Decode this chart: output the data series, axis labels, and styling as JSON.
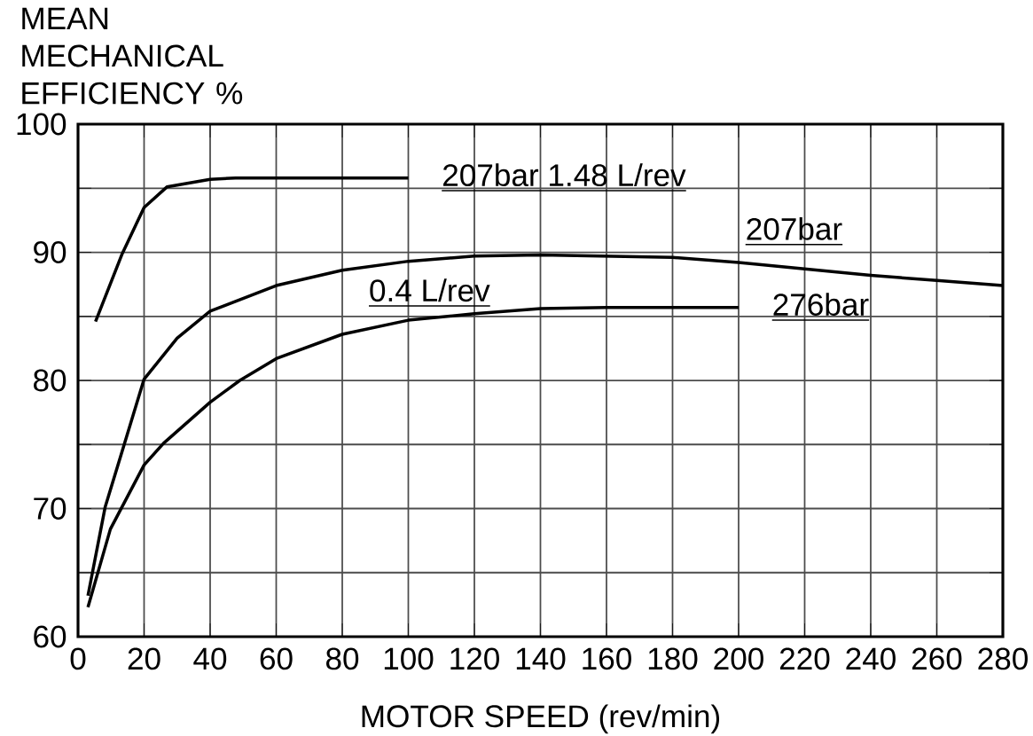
{
  "chart_data": {
    "type": "line",
    "xlabel": "MOTOR SPEED (rev/min)",
    "ylabel": "MEAN MECHANICAL EFFICIENCY %",
    "xlim": [
      0,
      280
    ],
    "ylim": [
      60,
      100
    ],
    "xticks": [
      0,
      20,
      40,
      60,
      80,
      100,
      120,
      140,
      160,
      180,
      200,
      220,
      240,
      260,
      280
    ],
    "yticks": [
      60,
      {
        "value": 65,
        "label": null
      },
      70,
      {
        "value": 75,
        "label": null
      },
      80,
      {
        "value": 85,
        "label": null
      },
      90,
      {
        "value": 95,
        "label": null
      },
      100
    ],
    "grid": true,
    "annotations": [
      "0.4 L/rev"
    ],
    "series": [
      {
        "name": "207bar 1.48 L/rev",
        "color": "#000000",
        "x": [
          5.3,
          13.4,
          20,
          26.9,
          40,
          47.7,
          60,
          80,
          100
        ],
        "values": [
          84.6,
          89.9,
          93.5,
          95.1,
          95.7,
          95.8,
          95.8,
          95.8,
          95.8
        ]
      },
      {
        "name": "207bar",
        "color": "#000000",
        "x": [
          3,
          8.2,
          20,
          30,
          40,
          60,
          80,
          100,
          120,
          140,
          160,
          180,
          200,
          220,
          240,
          260,
          280
        ],
        "values": [
          63.2,
          70.1,
          80.1,
          83.3,
          85.4,
          87.4,
          88.6,
          89.3,
          89.7,
          89.8,
          89.7,
          89.6,
          89.2,
          88.7,
          88.2,
          87.8,
          87.4
        ]
      },
      {
        "name": "276bar",
        "color": "#000000",
        "x": [
          3,
          9.8,
          20,
          25.9,
          40,
          49,
          60,
          80,
          100,
          120,
          140,
          160,
          180,
          200
        ],
        "values": [
          62.3,
          68.4,
          73.4,
          75.1,
          78.3,
          80.0,
          81.7,
          83.6,
          84.7,
          85.2,
          85.6,
          85.7,
          85.7,
          85.7
        ]
      }
    ]
  }
}
